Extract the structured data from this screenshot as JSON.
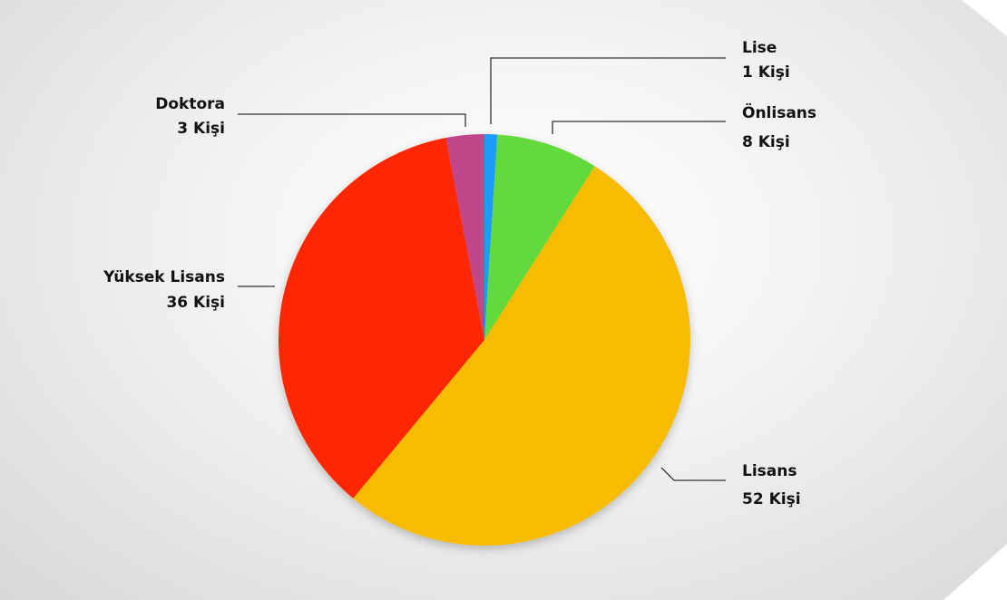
{
  "chart_data": {
    "type": "pie",
    "title": "",
    "unit_suffix": " Kişi",
    "slices": [
      {
        "label": "Lise",
        "value": 1,
        "value_text": "1 Kişi",
        "color": "#1a9cff"
      },
      {
        "label": "Önlisans",
        "value": 8,
        "value_text": "8 Kişi",
        "color": "#62da3a"
      },
      {
        "label": "Lisans",
        "value": 52,
        "value_text": "52 Kişi",
        "color": "#f7bb00"
      },
      {
        "label": "Yüksek Lisans",
        "value": 36,
        "value_text": "36 Kişi",
        "color": "#ff2600"
      },
      {
        "label": "Doktora",
        "value": 3,
        "value_text": "3 Kişi",
        "color": "#c0458a"
      }
    ],
    "start_angle": "top",
    "direction": "clockwise"
  },
  "colors": {
    "background": "#eeeeee",
    "leader_line": "#333333",
    "label_text": "#111111"
  }
}
